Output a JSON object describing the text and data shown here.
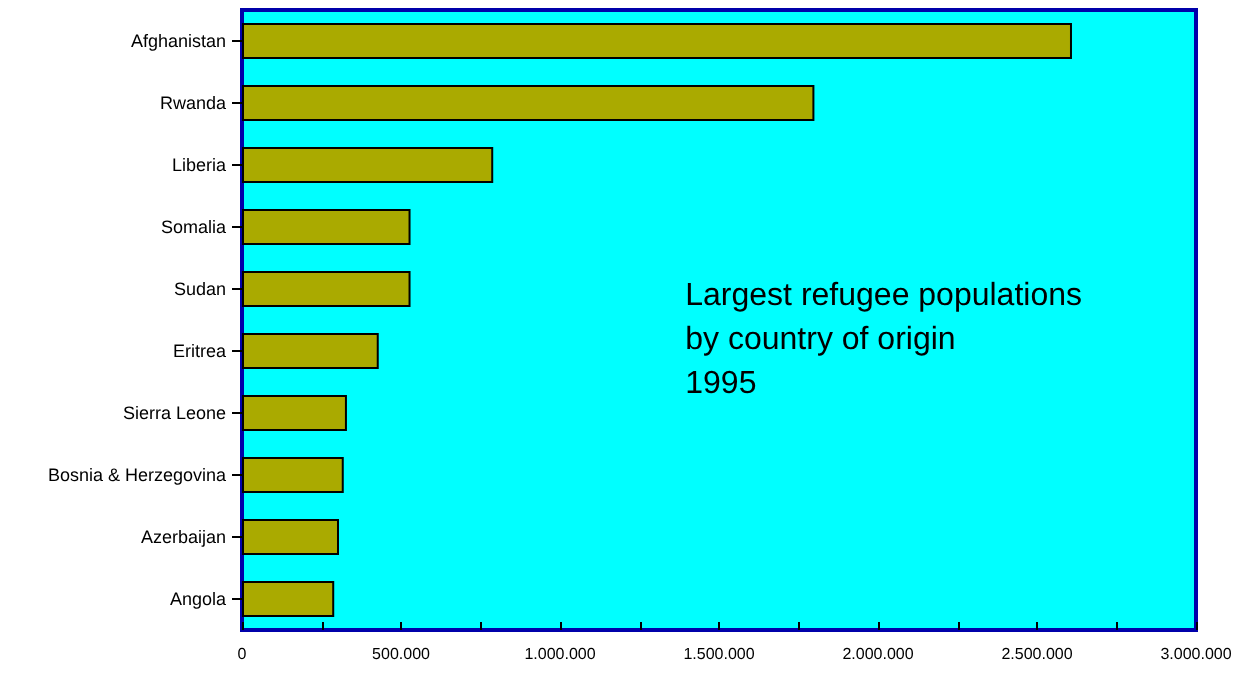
{
  "chart_data": {
    "type": "bar",
    "orientation": "horizontal",
    "title": "Largest refugee populations\nby country of origin\n1995",
    "categories": [
      "Afghanistan",
      "Rwanda",
      "Liberia",
      "Somalia",
      "Sudan",
      "Eritrea",
      "Sierra Leone",
      "Bosnia & Herzegovina",
      "Azerbaijan",
      "Angola"
    ],
    "values": [
      2610000,
      1800000,
      790000,
      530000,
      530000,
      430000,
      330000,
      320000,
      305000,
      290000
    ],
    "color": "#aaaa00",
    "xlim": [
      0,
      3000000
    ],
    "xticks": [
      0,
      {
        "value": 250000,
        "label": null
      },
      {
        "value": 500000,
        "label": "500.000"
      },
      {
        "value": 750000,
        "label": null
      },
      {
        "value": 1000000,
        "label": "1.000.000"
      },
      {
        "value": 1250000,
        "label": null
      },
      {
        "value": 1500000,
        "label": "1.500.000"
      },
      {
        "value": 1750000,
        "label": null
      },
      {
        "value": 2000000,
        "label": "2.000.000"
      },
      {
        "value": 2250000,
        "label": null
      },
      {
        "value": 2500000,
        "label": "2.500.000"
      },
      {
        "value": 2750000,
        "label": null
      },
      {
        "value": 3000000,
        "label": "3.000.000"
      }
    ],
    "grid": false
  }
}
